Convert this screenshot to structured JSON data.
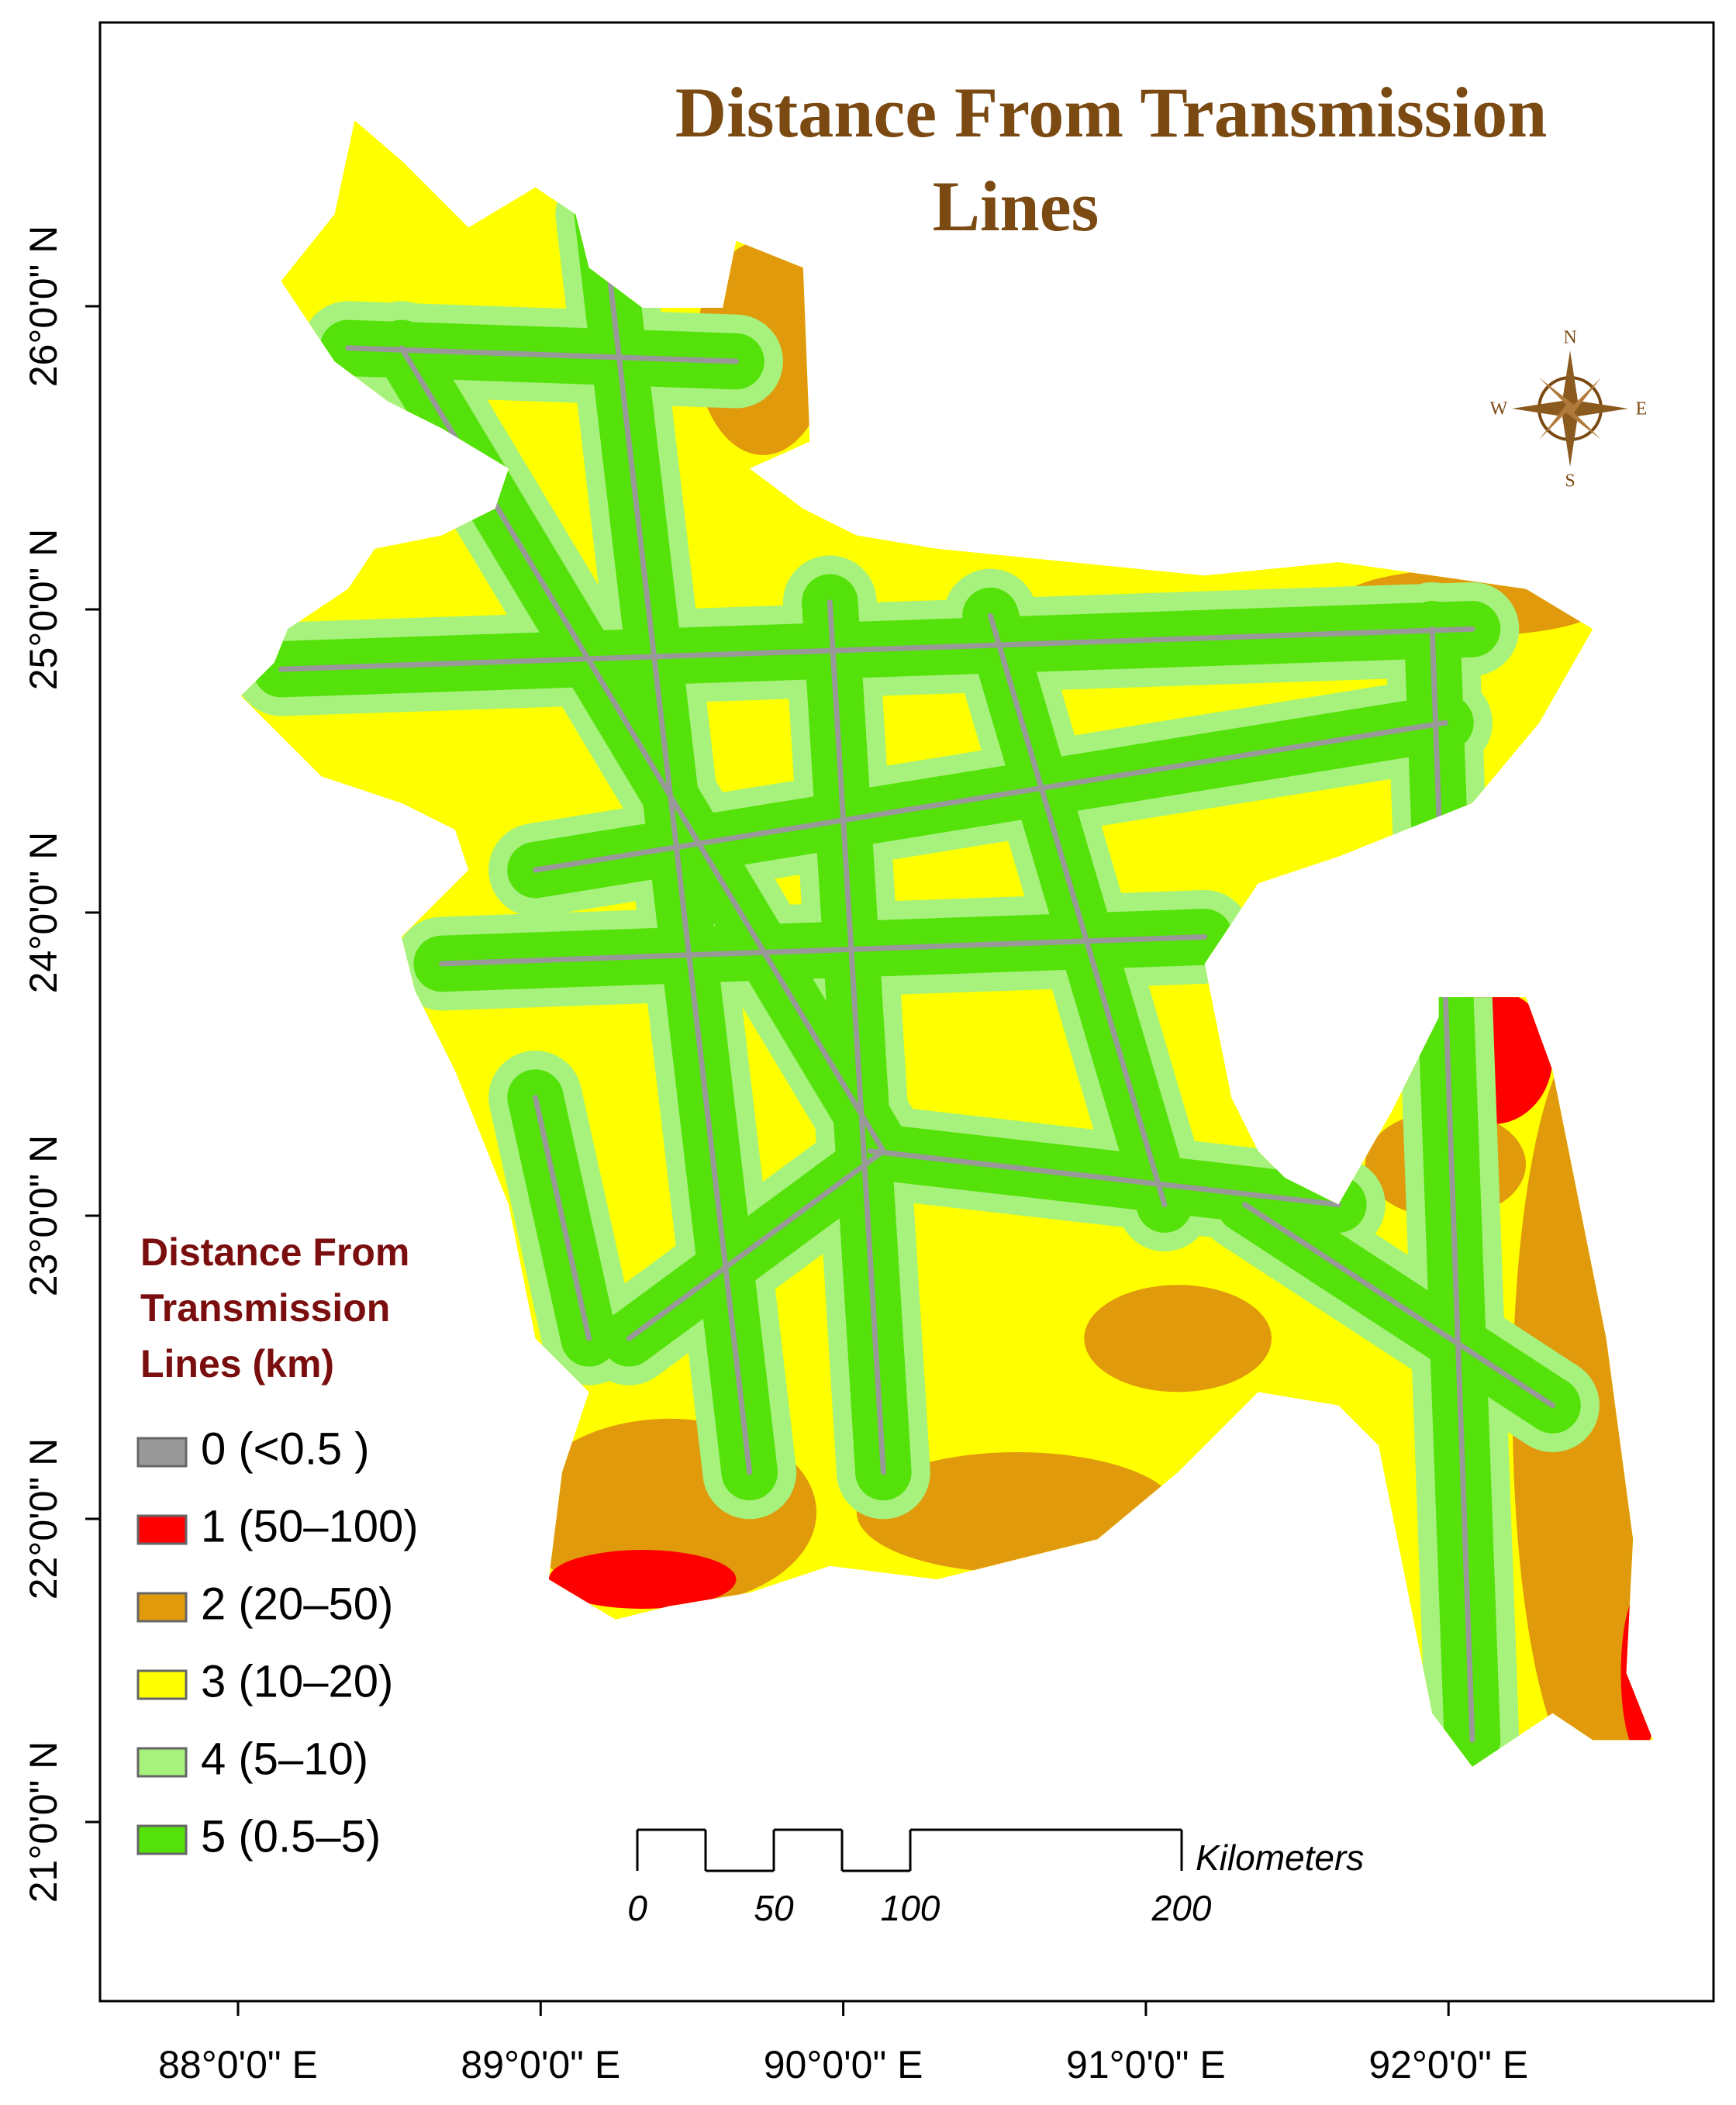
{
  "title": [
    "Distance From Transmission",
    "Lines"
  ],
  "legend": {
    "title": [
      "Distance From",
      "Transmission",
      "Lines (km)"
    ],
    "items": [
      {
        "label": "0 (<0.5 )",
        "color": "#999999"
      },
      {
        "label": "1 (50–100)",
        "color": "#ff0000"
      },
      {
        "label": "2 (20–50)",
        "color": "#e09a0c"
      },
      {
        "label": "3 (10–20)",
        "color": "#ffff00"
      },
      {
        "label": "4 (5–10)",
        "color": "#a6f27c"
      },
      {
        "label": "5 (0.5–5)",
        "color": "#55e10a"
      }
    ]
  },
  "x_axis": [
    "88°0'0\" E",
    "89°0'0\" E",
    "90°0'0\" E",
    "91°0'0\" E",
    "92°0'0\" E"
  ],
  "y_axis": [
    "26°0'0\" N",
    "25°0'0\" N",
    "24°0'0\" N",
    "23°0'0\" N",
    "22°0'0\" N",
    "21°0'0\" N"
  ],
  "scale_bar": {
    "labels": [
      "0",
      "50",
      "100",
      "200"
    ],
    "unit": "Kilometers"
  },
  "compass": {
    "n": "N",
    "s": "S",
    "e": "E",
    "w": "W"
  }
}
